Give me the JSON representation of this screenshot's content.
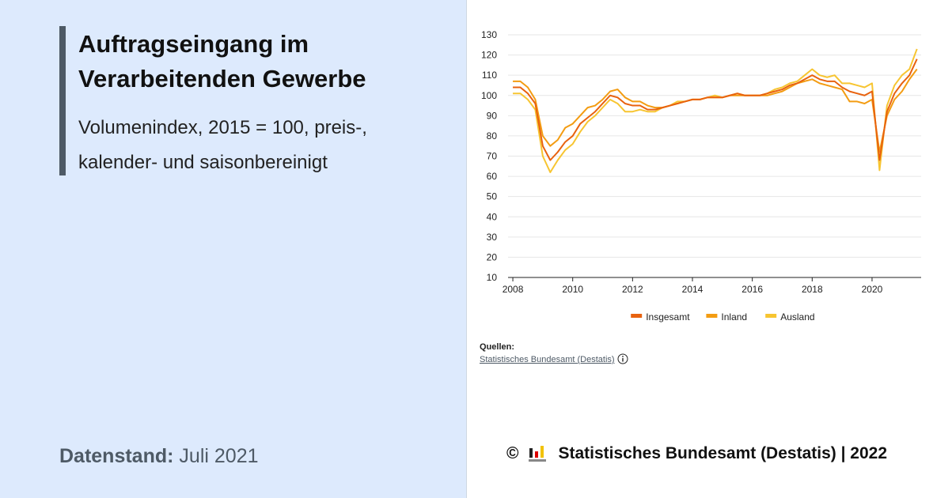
{
  "header": {
    "title": "Auftragseingang im Verarbeitenden Gewerbe",
    "subtitle": "Volumenindex, 2015 = 100, preis-, kalender- und saisonbereinigt"
  },
  "status": {
    "label": "Datenstand:",
    "value": "Juli 2021"
  },
  "sources": {
    "label": "Quellen:",
    "link": "Statistisches Bundesamt (Destatis)"
  },
  "footer": {
    "copyright": "©",
    "text": "Statistisches Bundesamt (Destatis) | 2022"
  },
  "chart_data": {
    "type": "line",
    "x": [
      2008,
      2008.25,
      2008.5,
      2008.75,
      2009,
      2009.25,
      2009.5,
      2009.75,
      2010,
      2010.25,
      2010.5,
      2010.75,
      2011,
      2011.25,
      2011.5,
      2011.75,
      2012,
      2012.25,
      2012.5,
      2012.75,
      2013,
      2013.25,
      2013.5,
      2013.75,
      2014,
      2014.25,
      2014.5,
      2014.75,
      2015,
      2015.25,
      2015.5,
      2015.75,
      2016,
      2016.25,
      2016.5,
      2016.75,
      2017,
      2017.25,
      2017.5,
      2017.75,
      2018,
      2018.25,
      2018.5,
      2018.75,
      2019,
      2019.25,
      2019.5,
      2019.75,
      2020,
      2020.25,
      2020.5,
      2020.75,
      2021,
      2021.25,
      2021.5
    ],
    "series": [
      {
        "name": "Insgesamt",
        "color": "#e8620f",
        "values": [
          104,
          104,
          101,
          96,
          75,
          68,
          72,
          77,
          80,
          86,
          89,
          92,
          96,
          100,
          99,
          96,
          95,
          95,
          93,
          93,
          94,
          95,
          96,
          97,
          98,
          98,
          99,
          99,
          99,
          100,
          101,
          100,
          100,
          100,
          101,
          102,
          103,
          105,
          106,
          108,
          110,
          108,
          107,
          107,
          104,
          102,
          101,
          100,
          102,
          68,
          92,
          101,
          106,
          110,
          118
        ]
      },
      {
        "name": "Inland",
        "color": "#f39c12",
        "values": [
          107,
          107,
          104,
          98,
          80,
          75,
          78,
          84,
          86,
          90,
          94,
          95,
          98,
          102,
          103,
          99,
          97,
          97,
          95,
          94,
          94,
          95,
          96,
          97,
          98,
          98,
          99,
          99,
          99,
          100,
          100,
          100,
          100,
          100,
          100,
          101,
          102,
          104,
          106,
          107,
          108,
          106,
          105,
          104,
          103,
          97,
          97,
          96,
          98,
          72,
          90,
          98,
          102,
          108,
          113
        ]
      },
      {
        "name": "Ausland",
        "color": "#f7c531",
        "values": [
          101,
          101,
          98,
          93,
          70,
          62,
          68,
          73,
          76,
          82,
          87,
          90,
          94,
          98,
          96,
          92,
          92,
          93,
          92,
          92,
          94,
          95,
          97,
          97,
          98,
          98,
          99,
          100,
          99,
          100,
          101,
          100,
          100,
          100,
          101,
          103,
          104,
          106,
          107,
          110,
          113,
          110,
          109,
          110,
          106,
          106,
          105,
          104,
          106,
          63,
          95,
          105,
          110,
          113,
          123
        ]
      }
    ],
    "xlim": [
      2007.84,
      2021.64
    ],
    "xticks": [
      2008,
      2010,
      2012,
      2014,
      2016,
      2018,
      2020
    ],
    "ylim": [
      10,
      130
    ],
    "yticks": [
      10,
      20,
      30,
      40,
      50,
      60,
      70,
      80,
      90,
      100,
      110,
      120,
      130
    ],
    "grid": true,
    "legend": "bottom"
  }
}
